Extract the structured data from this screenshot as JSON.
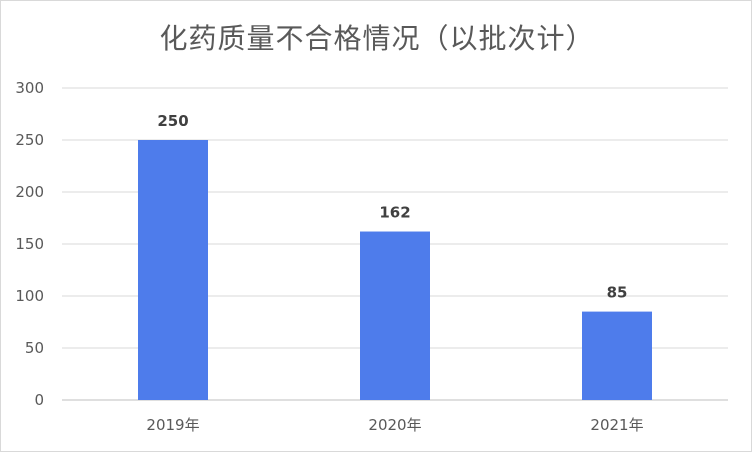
{
  "chart_data": {
    "type": "bar",
    "title": "化药质量不合格情况（以批次计）",
    "categories": [
      "2019年",
      "2020年",
      "2021年"
    ],
    "values": [
      250,
      162,
      85
    ],
    "data_labels": [
      "250",
      "162",
      "85"
    ],
    "ylim": [
      0,
      300
    ],
    "yticks": [
      0,
      50,
      100,
      150,
      200,
      250,
      300
    ],
    "ytick_labels": [
      "0",
      "50",
      "100",
      "150",
      "200",
      "250",
      "300"
    ],
    "grid": true,
    "legend": "none",
    "colors": {
      "bar": "#4E7CEB",
      "grid": "#d9d9d9",
      "text": "#595959"
    }
  }
}
